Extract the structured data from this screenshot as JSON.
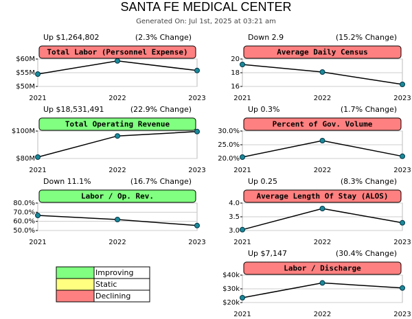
{
  "header": {
    "title": "SANTA FE MEDICAL CENTER",
    "subtitle": "Generated On: Jul 1st, 2025 at 03:21 am"
  },
  "legend": {
    "items": [
      {
        "label": "Improving",
        "color": "#80ff80"
      },
      {
        "label": "Static",
        "color": "#ffff80"
      },
      {
        "label": "Declining",
        "color": "#ff8080"
      }
    ]
  },
  "chart_data": [
    {
      "type": "line",
      "title": "Total Labor (Personnel Expense)",
      "title_color": "#ff8080",
      "annotations": [
        "Up $1,264,802",
        "(2.3% Change)"
      ],
      "categories": [
        "2021",
        "2022",
        "2023"
      ],
      "values": [
        54.5,
        59.3,
        55.8
      ],
      "ylim": [
        50,
        60
      ],
      "yticks": [
        {
          "value": 60,
          "label": "$60M"
        },
        {
          "value": 55,
          "label": "$55M"
        },
        {
          "value": 50,
          "label": "$50M"
        }
      ],
      "grid": true
    },
    {
      "type": "line",
      "title": "Average Daily Census",
      "title_color": "#ff8080",
      "annotations": [
        "Down 2.9",
        "(15.2% Change)"
      ],
      "categories": [
        "2021",
        "2022",
        "2023"
      ],
      "values": [
        19.2,
        18.1,
        16.3
      ],
      "ylim": [
        16,
        20
      ],
      "yticks": [
        20,
        18,
        16
      ],
      "grid": true
    },
    {
      "type": "line",
      "title": "Total Operating Revenue",
      "title_color": "#80ff80",
      "annotations": [
        "Up $18,531,491",
        "(22.9% Change)"
      ],
      "categories": [
        "2021",
        "2022",
        "2023"
      ],
      "values": [
        81,
        96.4,
        99.6
      ],
      "ylim": [
        80,
        100
      ],
      "yticks": [
        {
          "value": 100,
          "label": "$100M"
        },
        {
          "value": 80,
          "label": "$80M"
        }
      ],
      "grid": true
    },
    {
      "type": "line",
      "title": "Percent of Gov. Volume",
      "title_color": "#ff8080",
      "annotations": [
        "Up 0.3%",
        "(1.7% Change)"
      ],
      "categories": [
        "2021",
        "2022",
        "2023"
      ],
      "values": [
        20.5,
        26.5,
        20.8
      ],
      "ylim": [
        20,
        30
      ],
      "yticks": [
        {
          "value": 30,
          "label": "30.0%"
        },
        {
          "value": 25,
          "label": "25.0%"
        },
        {
          "value": 20,
          "label": "20.0%"
        }
      ],
      "grid": true
    },
    {
      "type": "line",
      "title": "Labor / Op. Rev.",
      "title_color": "#80ff80",
      "annotations": [
        "Down 11.1%",
        "(16.7% Change)"
      ],
      "categories": [
        "2021",
        "2022",
        "2023"
      ],
      "values": [
        66.5,
        62,
        55.4
      ],
      "ylim": [
        50,
        80
      ],
      "yticks": [
        {
          "value": 80,
          "label": "80.0%"
        },
        {
          "value": 70,
          "label": "70.0%"
        },
        {
          "value": 60,
          "label": "60.0%"
        },
        {
          "value": 50,
          "label": "50.0%"
        }
      ],
      "grid": true
    },
    {
      "type": "line",
      "title": "Average Length Of Stay (ALOS)",
      "title_color": "#ff8080",
      "annotations": [
        "Up 0.25",
        "(8.3% Change)"
      ],
      "categories": [
        "2021",
        "2022",
        "2023"
      ],
      "values": [
        3.03,
        3.8,
        3.28
      ],
      "ylim": [
        3,
        4
      ],
      "yticks": [
        {
          "value": 4,
          "label": "4.0"
        },
        3.5,
        {
          "value": 3,
          "label": "3.0"
        }
      ],
      "grid": true
    },
    {
      "type": "line",
      "title": "Labor / Discharge",
      "title_color": "#ff8080",
      "annotations": [
        "Up $7,147",
        "(30.4% Change)"
      ],
      "categories": [
        "2021",
        "2022",
        "2023"
      ],
      "values": [
        23.5,
        34.3,
        30.6
      ],
      "ylim": [
        20,
        40
      ],
      "yticks": [
        {
          "value": 40,
          "label": "$40k"
        },
        {
          "value": 30,
          "label": "$30k"
        },
        {
          "value": 20,
          "label": "$20k"
        }
      ],
      "grid": true
    }
  ]
}
